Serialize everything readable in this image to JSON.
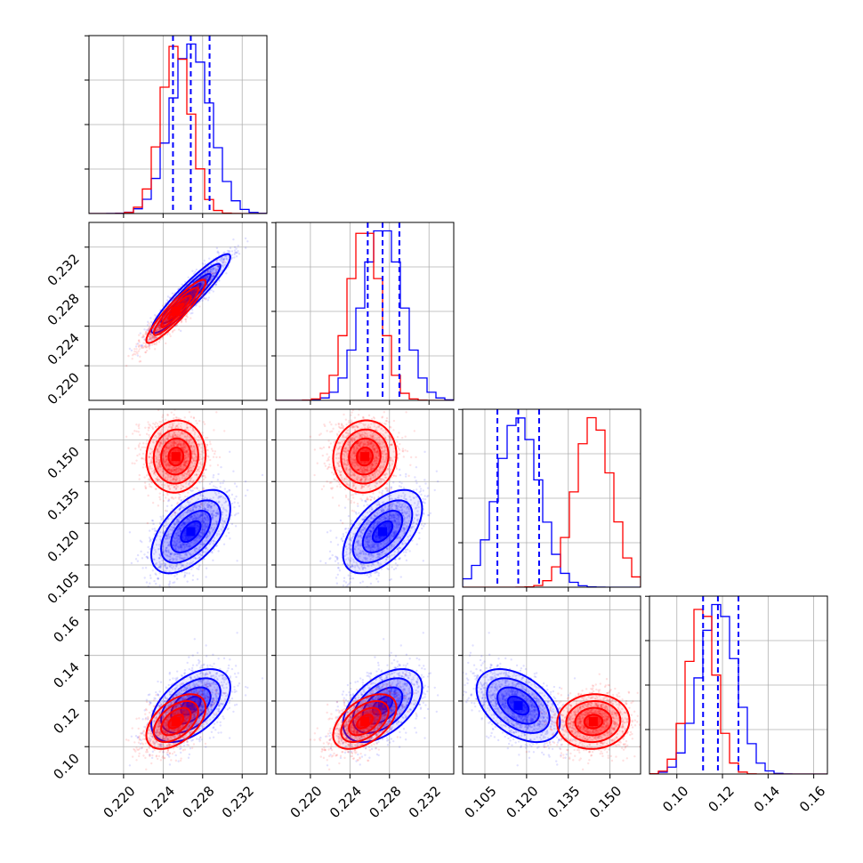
{
  "colors": {
    "blue": "#0000ff",
    "red": "#ff0000"
  },
  "chart_data": {
    "type": "corner",
    "title": "",
    "parameters": [
      "",
      "",
      "",
      ""
    ],
    "ranges": [
      [
        0.2165,
        0.2345
      ],
      [
        0.2165,
        0.2345
      ],
      [
        0.097,
        0.161
      ],
      [
        0.088,
        0.166
      ]
    ],
    "ticks": [
      [
        0.22,
        0.224,
        0.228,
        0.232
      ],
      [
        0.22,
        0.224,
        0.228,
        0.232
      ],
      [
        0.105,
        0.12,
        0.135,
        0.15
      ],
      [
        0.1,
        0.12,
        0.14,
        0.16
      ]
    ],
    "tick_labels": [
      [
        "0.220",
        "0.224",
        "0.228",
        "0.232"
      ],
      [
        "0.220",
        "0.224",
        "0.228",
        "0.232"
      ],
      [
        "0.105",
        "0.120",
        "0.135",
        "0.150"
      ],
      [
        "0.10",
        "0.12",
        "0.14",
        "0.16"
      ]
    ],
    "grid": true,
    "series": [
      {
        "color": "#0000ff",
        "mean": [
          0.2268,
          0.2273,
          0.117,
          0.118
        ],
        "sd": [
          0.002,
          0.002,
          0.0075,
          0.008
        ],
        "corr": [
          [
            1.0,
            0.93,
            0.55,
            0.5
          ],
          [
            0.93,
            1.0,
            0.55,
            0.5
          ],
          [
            0.55,
            0.55,
            1.0,
            -0.45
          ],
          [
            0.5,
            0.5,
            -0.45,
            1.0
          ]
        ],
        "quantiles": [
          [
            0.225,
            0.2268,
            0.2287
          ],
          [
            0.2258,
            0.2273,
            0.229
          ],
          [
            0.1095,
            0.117,
            0.1245
          ],
          [
            0.1115,
            0.118,
            0.127
          ]
        ]
      },
      {
        "color": "#ff0000",
        "mean": [
          0.2253,
          0.2255,
          0.144,
          0.111
        ],
        "sd": [
          0.0015,
          0.0016,
          0.0065,
          0.006
        ],
        "corr": [
          [
            1.0,
            0.92,
            0.05,
            0.5
          ],
          [
            0.92,
            1.0,
            0.05,
            0.5
          ],
          [
            0.05,
            0.05,
            1.0,
            0.05
          ],
          [
            0.5,
            0.5,
            0.05,
            1.0
          ]
        ],
        "quantiles": []
      }
    ]
  }
}
